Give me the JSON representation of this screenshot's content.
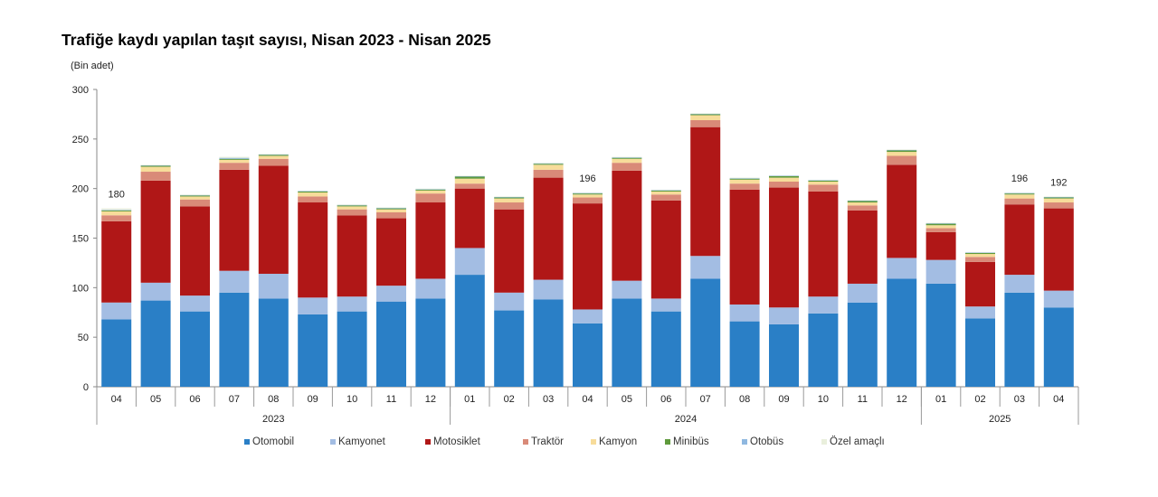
{
  "title": "Trafiğe kaydı yapılan taşıt sayısı, Nisan 2023 - Nisan 2025",
  "chart_data": {
    "type": "bar",
    "stacked": true,
    "title": "Trafiğe kaydı yapılan taşıt sayısı, Nisan 2023 - Nisan 2025",
    "ylabel": "(Bin adet)",
    "ylim": [
      0,
      300
    ],
    "yticks": [
      0,
      50,
      100,
      150,
      200,
      250,
      300
    ],
    "grid": false,
    "legend_position": "bottom",
    "categories": [
      "04",
      "05",
      "06",
      "07",
      "08",
      "09",
      "10",
      "11",
      "12",
      "01",
      "02",
      "03",
      "04",
      "05",
      "06",
      "07",
      "08",
      "09",
      "10",
      "11",
      "12",
      "01",
      "02",
      "03",
      "04"
    ],
    "years": [
      {
        "label": "2023",
        "count": 9
      },
      {
        "label": "2024",
        "count": 12
      },
      {
        "label": "2025",
        "count": 4
      }
    ],
    "series": [
      {
        "name": "Otomobil",
        "color": "#2a7fc6",
        "values": [
          68,
          87,
          76,
          95,
          89,
          73,
          76,
          86,
          89,
          113,
          77,
          88,
          64,
          89,
          76,
          109,
          66,
          63,
          74,
          85,
          109,
          104,
          69,
          95,
          80
        ]
      },
      {
        "name": "Kamyonet",
        "color": "#a3bde3",
        "values": [
          17,
          18,
          16,
          22,
          25,
          17,
          15,
          16,
          20,
          27,
          18,
          20,
          14,
          18,
          13,
          23,
          17,
          17,
          17,
          19,
          21,
          24,
          12,
          18,
          17
        ]
      },
      {
        "name": "Motosiklet",
        "color": "#b01717",
        "values": [
          82,
          103,
          90,
          102,
          109,
          96,
          82,
          68,
          77,
          60,
          84,
          103,
          107,
          111,
          99,
          130,
          116,
          121,
          106,
          74,
          94,
          28,
          45,
          71,
          83
        ]
      },
      {
        "name": "Traktör",
        "color": "#d98a78",
        "values": [
          6,
          9,
          7,
          7,
          7,
          6,
          6,
          6,
          9,
          5,
          7,
          8,
          6,
          8,
          6,
          7,
          6,
          6,
          7,
          5,
          9,
          4,
          5,
          6,
          6
        ]
      },
      {
        "name": "Kamyon",
        "color": "#f7dc9a",
        "values": [
          4,
          5,
          3,
          3,
          3,
          4,
          3,
          3,
          3,
          5,
          4,
          5,
          3,
          4,
          3,
          5,
          4,
          4,
          3,
          3,
          4,
          3,
          3,
          4,
          4
        ]
      },
      {
        "name": "Minibüs",
        "color": "#5f9a3c",
        "values": [
          1,
          1,
          1,
          1,
          1,
          1,
          1,
          1,
          1,
          2,
          1,
          1,
          1,
          1,
          1,
          1,
          1,
          1.5,
          1,
          1.5,
          1.5,
          1.5,
          1,
          1,
          1
        ]
      },
      {
        "name": "Otobüs",
        "color": "#8fb8e0",
        "values": [
          0.5,
          0.5,
          0.5,
          1,
          0.5,
          0.5,
          0.5,
          0.5,
          0.5,
          0.5,
          0.5,
          0.5,
          0.5,
          0.5,
          0.5,
          0.5,
          0.5,
          0.5,
          0.5,
          0.5,
          0.5,
          0.5,
          0.5,
          0.5,
          0.5
        ]
      },
      {
        "name": "Özel amaçlı",
        "color": "#e9efdc",
        "values": [
          1.5,
          0.5,
          0.5,
          1,
          0.5,
          0.5,
          0.5,
          0.5,
          0.5,
          0.5,
          0.5,
          0.5,
          0.5,
          0.5,
          0.5,
          0.5,
          0.5,
          0.5,
          0.5,
          0.5,
          0.5,
          0.5,
          0.5,
          0.5,
          0.5
        ]
      }
    ],
    "data_labels": [
      {
        "index": 0,
        "text": "180"
      },
      {
        "index": 12,
        "text": "196"
      },
      {
        "index": 23,
        "text": "196"
      },
      {
        "index": 24,
        "text": "192"
      }
    ]
  }
}
